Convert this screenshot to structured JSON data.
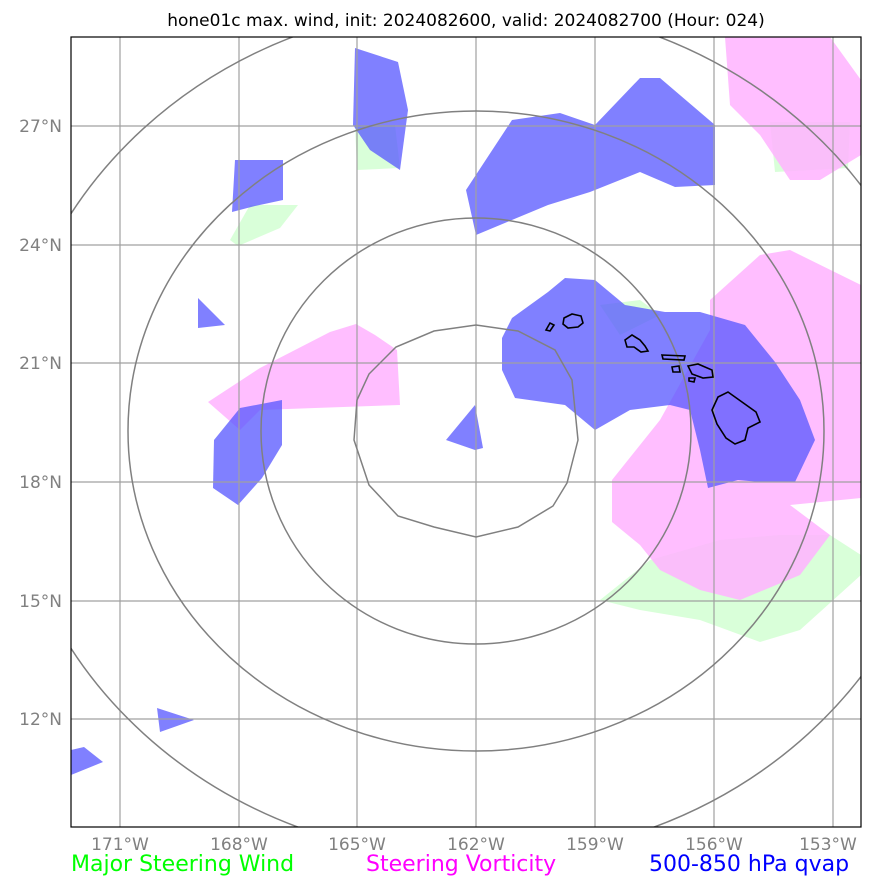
{
  "title": "hone01c max. wind, init: 2024082600, valid: 2024082700 (Hour: 024)",
  "map": {
    "lon_min": -172.0,
    "lon_max": -152.6,
    "lat_min": 9.8,
    "lat_max": 29.5,
    "center": {
      "lon": -162.0,
      "lat": 19.0
    },
    "lat_ticks": [
      {
        "value": 27,
        "label": "27°N"
      },
      {
        "value": 24,
        "label": "24°N"
      },
      {
        "value": 21,
        "label": "21°N"
      },
      {
        "value": 18,
        "label": "18°N"
      },
      {
        "value": 15,
        "label": "15°N"
      },
      {
        "value": 12,
        "label": "12°N"
      }
    ],
    "lon_ticks": [
      {
        "value": -171,
        "label": "171°W"
      },
      {
        "value": -168,
        "label": "168°W"
      },
      {
        "value": -165,
        "label": "165°W"
      },
      {
        "value": -162,
        "label": "162°W"
      },
      {
        "value": -159,
        "label": "159°W"
      },
      {
        "value": -156,
        "label": "156°W"
      },
      {
        "value": -153,
        "label": "153°W"
      }
    ],
    "grid": true
  },
  "legend": {
    "steering_wind": {
      "label": "Major Steering Wind",
      "color": "#00ff00"
    },
    "steering_vorticity": {
      "label": "Steering Vorticity",
      "color": "#ff00ff"
    },
    "qvap": {
      "label": "500-850 hPa qvap",
      "color": "#0000ff"
    }
  },
  "colors": {
    "range_ring": "#808080",
    "grid": "#a0a0a0",
    "coastline": "#000000",
    "wind_fill": "#ccffcc",
    "vorticity_fill": "#ffb3ff",
    "qvap_fill": "#5555ff"
  }
}
